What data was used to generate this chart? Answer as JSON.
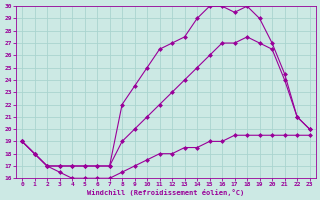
{
  "xlabel": "Windchill (Refroidissement éolien,°C)",
  "bg_color": "#cce9e4",
  "line_color": "#990099",
  "grid_color": "#aad4cf",
  "xlim": [
    -0.5,
    23.5
  ],
  "ylim": [
    16,
    30
  ],
  "xticks": [
    0,
    1,
    2,
    3,
    4,
    5,
    6,
    7,
    8,
    9,
    10,
    11,
    12,
    13,
    14,
    15,
    16,
    17,
    18,
    19,
    20,
    21,
    22,
    23
  ],
  "yticks": [
    16,
    17,
    18,
    19,
    20,
    21,
    22,
    23,
    24,
    25,
    26,
    27,
    28,
    29,
    30
  ],
  "curve1_x": [
    0,
    1,
    2,
    3,
    4,
    5,
    6,
    7,
    8,
    9,
    10,
    11,
    12,
    13,
    14,
    15,
    16,
    17,
    18,
    19,
    20,
    21,
    22,
    23
  ],
  "curve1_y": [
    19,
    18,
    17,
    16.5,
    16,
    16,
    16,
    16,
    16.5,
    17,
    17.5,
    18,
    18,
    18.5,
    18.5,
    19,
    19,
    19.5,
    19.5,
    19.5,
    19.5,
    19.5,
    19.5,
    19.5
  ],
  "curve2_x": [
    0,
    1,
    2,
    3,
    4,
    5,
    6,
    7,
    8,
    9,
    10,
    11,
    12,
    13,
    14,
    15,
    16,
    17,
    18,
    19,
    20,
    21,
    22,
    23
  ],
  "curve2_y": [
    19,
    18,
    17,
    17,
    17,
    17,
    17,
    17,
    19,
    20,
    21,
    22,
    23,
    24,
    25,
    26,
    27,
    27,
    27.5,
    27,
    26.5,
    24,
    21,
    20
  ],
  "curve3_x": [
    0,
    1,
    2,
    3,
    4,
    5,
    6,
    7,
    8,
    9,
    10,
    11,
    12,
    13,
    14,
    15,
    16,
    17,
    18,
    19,
    20,
    21,
    22,
    23
  ],
  "curve3_y": [
    19,
    18,
    17,
    17,
    17,
    17,
    17,
    17,
    22,
    23.5,
    25,
    26.5,
    27,
    27.5,
    29,
    30,
    30,
    29.5,
    30,
    29,
    27,
    24.5,
    21,
    20
  ]
}
